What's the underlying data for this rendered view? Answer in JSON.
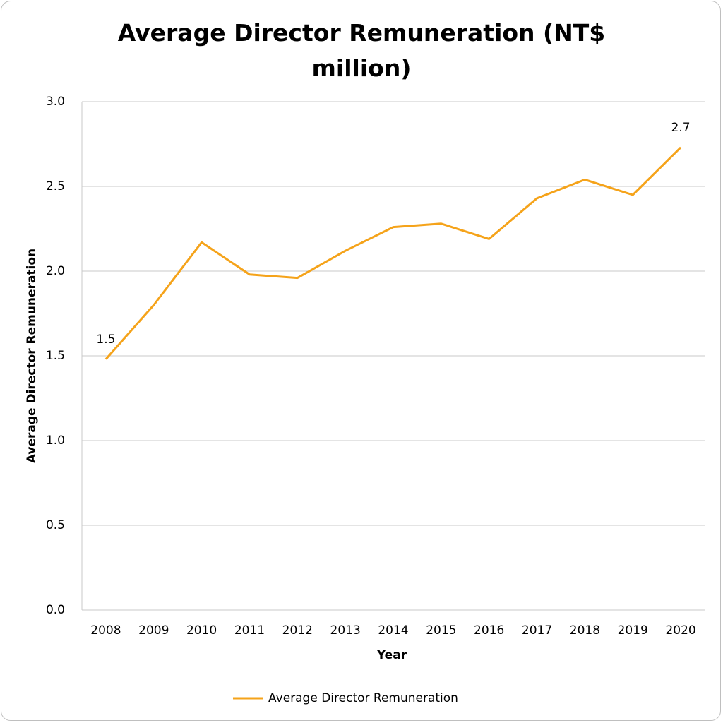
{
  "chart_data": {
    "type": "line",
    "title": "Average Director Remuneration (NT$ million)",
    "x_label": "Year",
    "y_label": "Average Director Remuneration",
    "categories": [
      "2008",
      "2009",
      "2010",
      "2011",
      "2012",
      "2013",
      "2014",
      "2015",
      "2016",
      "2017",
      "2018",
      "2019",
      "2020"
    ],
    "series": [
      {
        "name": "Average Director Remuneration",
        "color": "#f5a31a",
        "values": [
          1.48,
          1.8,
          2.17,
          1.98,
          1.96,
          2.12,
          2.26,
          2.28,
          2.19,
          2.43,
          2.54,
          2.45,
          2.73
        ],
        "value_labels": [
          "1.5",
          null,
          null,
          null,
          null,
          null,
          null,
          null,
          null,
          null,
          null,
          null,
          "2.7"
        ]
      }
    ],
    "ylim": [
      0,
      3
    ],
    "yticks": [
      {
        "value": 0,
        "label": "0.0"
      },
      0.5,
      {
        "value": 1,
        "label": "1.0"
      },
      1.5,
      {
        "value": 2,
        "label": "2.0"
      },
      2.5,
      {
        "value": 3,
        "label": "3.0"
      }
    ],
    "grid": true
  }
}
